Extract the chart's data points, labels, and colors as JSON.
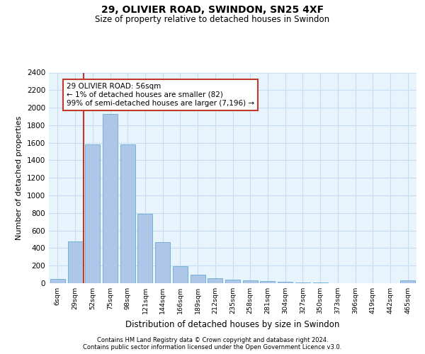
{
  "title1": "29, OLIVIER ROAD, SWINDON, SN25 4XF",
  "title2": "Size of property relative to detached houses in Swindon",
  "xlabel": "Distribution of detached houses by size in Swindon",
  "ylabel": "Number of detached properties",
  "categories": [
    "6sqm",
    "29sqm",
    "52sqm",
    "75sqm",
    "98sqm",
    "121sqm",
    "144sqm",
    "166sqm",
    "189sqm",
    "212sqm",
    "235sqm",
    "258sqm",
    "281sqm",
    "304sqm",
    "327sqm",
    "350sqm",
    "373sqm",
    "396sqm",
    "419sqm",
    "442sqm",
    "465sqm"
  ],
  "values": [
    50,
    480,
    1580,
    1930,
    1580,
    790,
    470,
    190,
    100,
    60,
    40,
    35,
    25,
    20,
    5,
    5,
    0,
    0,
    0,
    0,
    30
  ],
  "bar_color": "#aec6e8",
  "bar_edge_color": "#6aaad4",
  "vline_color": "#c0392b",
  "annotation_text": "29 OLIVIER ROAD: 56sqm\n← 1% of detached houses are smaller (82)\n99% of semi-detached houses are larger (7,196) →",
  "annotation_box_color": "#c0392b",
  "annotation_fontsize": 7.5,
  "grid_color": "#c5ddf0",
  "background_color": "#e8f4fc",
  "ylim": [
    0,
    2400
  ],
  "yticks": [
    0,
    200,
    400,
    600,
    800,
    1000,
    1200,
    1400,
    1600,
    1800,
    2000,
    2200,
    2400
  ],
  "footnote1": "Contains HM Land Registry data © Crown copyright and database right 2024.",
  "footnote2": "Contains public sector information licensed under the Open Government Licence v3.0."
}
